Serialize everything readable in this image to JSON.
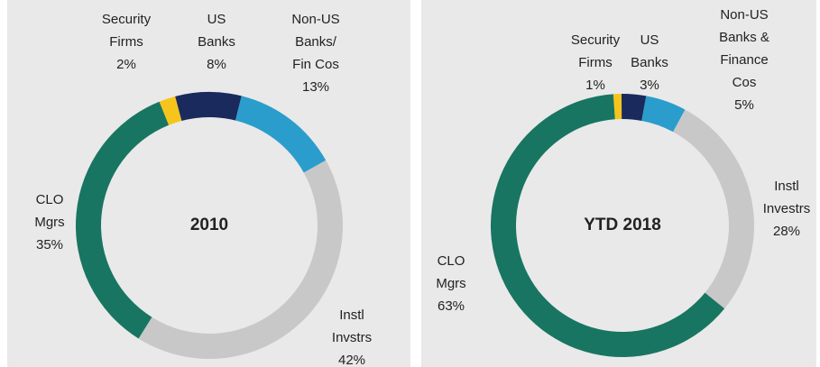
{
  "chart_data": [
    {
      "type": "pie",
      "title": "2010",
      "categories": [
        "Security\nFirms",
        "US\nBanks",
        "Non-US\nBanks/\nFin Cos",
        "Instl\nInvstrs",
        "CLO\nMgrs"
      ],
      "values": [
        2,
        8,
        13,
        42,
        35
      ],
      "value_labels": [
        "2%",
        "8%",
        "13%",
        "42%",
        "35%"
      ],
      "colors": [
        "#f6c51b",
        "#1b2a5c",
        "#2a9dcc",
        "#c8c8c8",
        "#187562"
      ]
    },
    {
      "type": "pie",
      "title": "YTD 2018",
      "categories": [
        "Security\nFirms",
        "US\nBanks",
        "Non-US\nBanks &\nFinance\nCos",
        "Instl\nInvestrs",
        "CLO\nMgrs"
      ],
      "values": [
        1,
        3,
        5,
        28,
        63
      ],
      "value_labels": [
        "1%",
        "3%",
        "5%",
        "28%",
        "63%"
      ],
      "colors": [
        "#f6c51b",
        "#1b2a5c",
        "#2a9dcc",
        "#c8c8c8",
        "#187562"
      ]
    }
  ]
}
